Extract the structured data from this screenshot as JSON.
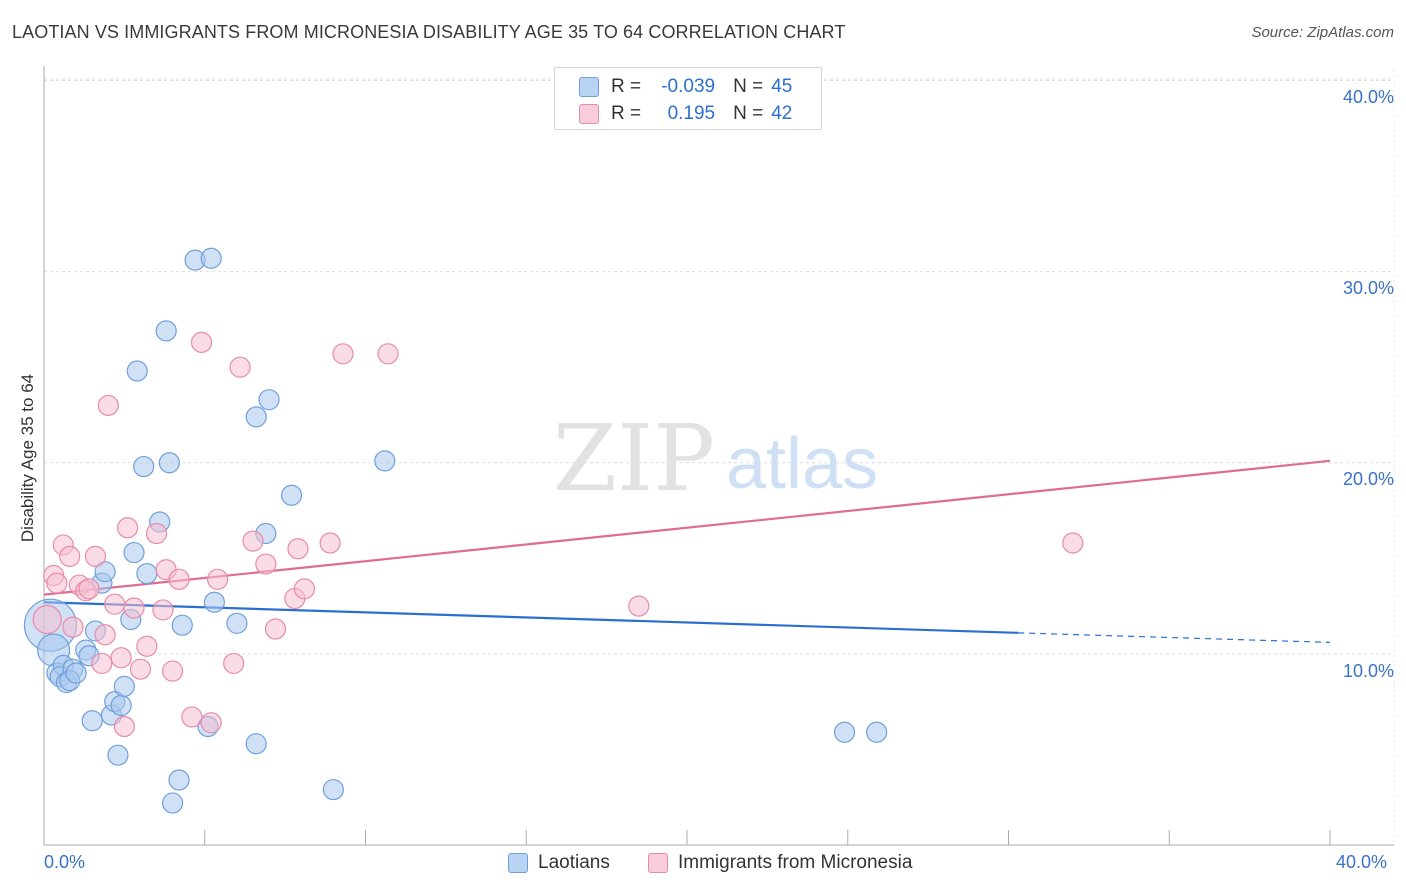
{
  "header": {
    "title": "LAOTIAN VS IMMIGRANTS FROM MICRONESIA DISABILITY AGE 35 TO 64 CORRELATION CHART",
    "source": "Source: ZipAtlas.com"
  },
  "watermark": {
    "zip": "ZIP",
    "atlas": "atlas"
  },
  "legend_top": {
    "rows": [
      {
        "r_label": "R =",
        "r_value": "-0.039",
        "n_label": "N =",
        "n_value": "45"
      },
      {
        "r_label": "R =",
        "r_value": "0.195",
        "n_label": "N =",
        "n_value": "42"
      }
    ]
  },
  "legend_bottom": {
    "series1": "Laotians",
    "series2": "Immigrants from Micronesia"
  },
  "colors": {
    "blue_fill": "#a9c8ef",
    "blue_stroke": "#6f9fdc",
    "blue_line": "#2a6fd0",
    "pink_fill": "#f6bfd1",
    "pink_stroke": "#e88aa9",
    "pink_line": "#e06b93",
    "accent_text": "#3a72c8"
  },
  "chart_data": {
    "type": "scatter",
    "title": "LAOTIAN VS IMMIGRANTS FROM MICRONESIA DISABILITY AGE 35 TO 64 CORRELATION CHART",
    "xlabel": "",
    "ylabel": "Disability Age 35 to 64",
    "xlim": [
      0,
      40
    ],
    "ylim": [
      0,
      41
    ],
    "x_tick_labels": [
      "0.0%",
      "40.0%"
    ],
    "y_tick_labels": [
      "10.0%",
      "20.0%",
      "30.0%",
      "40.0%"
    ],
    "y_ticks": [
      10,
      20,
      30,
      40
    ],
    "series": [
      {
        "name": "Laotians",
        "r": -0.039,
        "n": 45,
        "trend": {
          "x0": 0,
          "y0": 12.7,
          "x1": 30.3,
          "y1": 11.1,
          "dash_x1": 40,
          "dash_y1": 10.6
        },
        "points": [
          [
            0.2,
            11.5,
            26
          ],
          [
            0.3,
            10.2,
            16
          ],
          [
            0.4,
            9.0,
            10
          ],
          [
            0.6,
            9.4,
            10
          ],
          [
            0.5,
            8.8,
            10
          ],
          [
            0.7,
            8.5,
            10
          ],
          [
            0.9,
            9.2,
            10
          ],
          [
            0.8,
            8.6,
            10
          ],
          [
            1.0,
            9.0,
            10
          ],
          [
            1.3,
            10.2,
            10
          ],
          [
            1.4,
            9.9,
            10
          ],
          [
            1.6,
            11.2,
            10
          ],
          [
            1.8,
            13.7,
            10
          ],
          [
            1.9,
            14.3,
            10
          ],
          [
            2.1,
            6.8,
            10
          ],
          [
            2.2,
            7.5,
            10
          ],
          [
            2.4,
            7.3,
            10
          ],
          [
            2.5,
            8.3,
            10
          ],
          [
            2.7,
            11.8,
            10
          ],
          [
            2.8,
            15.3,
            10
          ],
          [
            2.9,
            24.8,
            10
          ],
          [
            3.1,
            19.8,
            10
          ],
          [
            3.2,
            14.2,
            10
          ],
          [
            3.6,
            16.9,
            10
          ],
          [
            3.8,
            26.9,
            10
          ],
          [
            3.9,
            20.0,
            10
          ],
          [
            4.3,
            11.5,
            10
          ],
          [
            4.7,
            30.6,
            10
          ],
          [
            5.2,
            30.7,
            10
          ],
          [
            5.3,
            12.7,
            10
          ],
          [
            6.0,
            11.6,
            10
          ],
          [
            6.6,
            22.4,
            10
          ],
          [
            6.9,
            16.3,
            10
          ],
          [
            7.0,
            23.3,
            10
          ],
          [
            7.7,
            18.3,
            10
          ],
          [
            1.5,
            6.5,
            10
          ],
          [
            2.3,
            4.7,
            10
          ],
          [
            4.2,
            3.4,
            10
          ],
          [
            5.1,
            6.2,
            10
          ],
          [
            4.0,
            2.2,
            10
          ],
          [
            6.6,
            5.3,
            10
          ],
          [
            9.0,
            2.9,
            10
          ],
          [
            10.6,
            20.1,
            10
          ],
          [
            24.9,
            5.9,
            10
          ],
          [
            25.9,
            5.9,
            10
          ]
        ]
      },
      {
        "name": "Immigrants from Micronesia",
        "r": 0.195,
        "n": 42,
        "trend": {
          "x0": 0,
          "y0": 13.1,
          "x1": 40,
          "y1": 20.1
        },
        "points": [
          [
            0.1,
            11.8,
            14
          ],
          [
            0.3,
            14.1,
            10
          ],
          [
            0.4,
            13.7,
            10
          ],
          [
            0.6,
            15.7,
            10
          ],
          [
            0.8,
            15.1,
            10
          ],
          [
            0.9,
            11.4,
            10
          ],
          [
            1.1,
            13.6,
            10
          ],
          [
            1.3,
            13.3,
            10
          ],
          [
            1.4,
            13.4,
            10
          ],
          [
            1.6,
            15.1,
            10
          ],
          [
            1.8,
            9.5,
            10
          ],
          [
            1.9,
            11.0,
            10
          ],
          [
            2.0,
            23.0,
            10
          ],
          [
            2.2,
            12.6,
            10
          ],
          [
            2.4,
            9.8,
            10
          ],
          [
            2.5,
            6.2,
            10
          ],
          [
            2.6,
            16.6,
            10
          ],
          [
            2.8,
            12.4,
            10
          ],
          [
            3.0,
            9.2,
            10
          ],
          [
            3.2,
            10.4,
            10
          ],
          [
            3.5,
            16.3,
            10
          ],
          [
            3.7,
            12.3,
            10
          ],
          [
            3.8,
            14.4,
            10
          ],
          [
            4.0,
            9.1,
            10
          ],
          [
            4.2,
            13.9,
            10
          ],
          [
            4.6,
            6.7,
            10
          ],
          [
            4.9,
            26.3,
            10
          ],
          [
            5.2,
            6.4,
            10
          ],
          [
            5.4,
            13.9,
            10
          ],
          [
            5.9,
            9.5,
            10
          ],
          [
            6.1,
            25.0,
            10
          ],
          [
            6.5,
            15.9,
            10
          ],
          [
            6.9,
            14.7,
            10
          ],
          [
            7.2,
            11.3,
            10
          ],
          [
            7.8,
            12.9,
            10
          ],
          [
            7.9,
            15.5,
            10
          ],
          [
            8.1,
            13.4,
            10
          ],
          [
            8.9,
            15.8,
            10
          ],
          [
            9.3,
            25.7,
            10
          ],
          [
            10.7,
            25.7,
            10
          ],
          [
            18.5,
            12.5,
            10
          ],
          [
            32.0,
            15.8,
            10
          ]
        ]
      }
    ]
  }
}
